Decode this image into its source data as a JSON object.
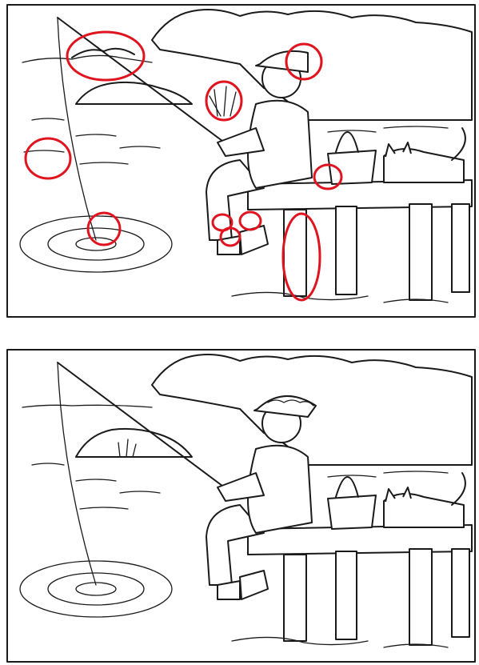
{
  "puzzle": {
    "type": "spot-the-difference",
    "differences_found": 10,
    "mark_color": "#e0141e",
    "ink_color": "#1a1a1a",
    "panels": [
      {
        "id": "top",
        "role": "annotated-with-circles"
      },
      {
        "id": "bottom",
        "role": "reference"
      }
    ],
    "differences": [
      {
        "name": "distant-hills"
      },
      {
        "name": "fisher-cap"
      },
      {
        "name": "reeds"
      },
      {
        "name": "smiley-face-in-water"
      },
      {
        "name": "fishing-float"
      },
      {
        "name": "basket-patch"
      },
      {
        "name": "left-shoe-sole"
      },
      {
        "name": "right-shoe-toe"
      },
      {
        "name": "shoe-heel"
      },
      {
        "name": "front-pier-post"
      }
    ]
  }
}
